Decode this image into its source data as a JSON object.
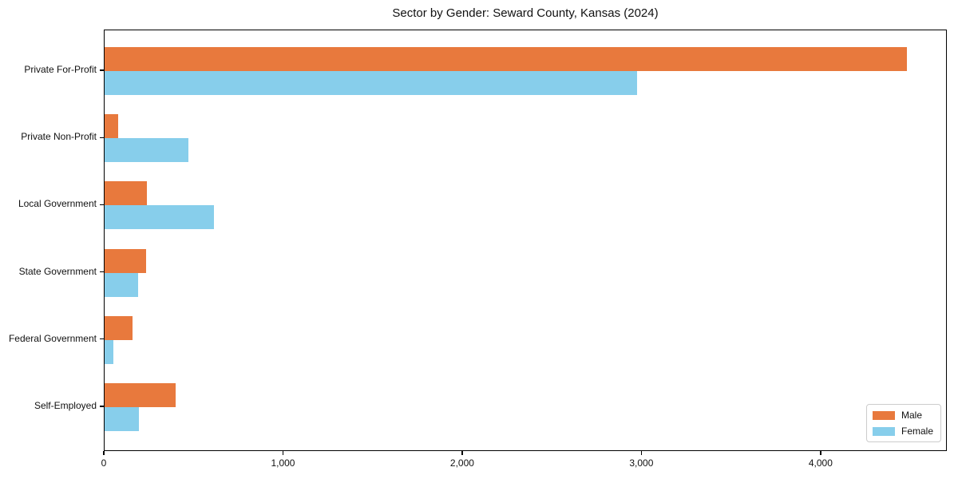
{
  "title": "Sector by Gender: Seward County, Kansas (2024)",
  "chart_data": {
    "type": "bar",
    "orientation": "horizontal",
    "title": "Sector by Gender: Seward County, Kansas (2024)",
    "categories": [
      "Private For-Profit",
      "Private Non-Profit",
      "Local Government",
      "State Government",
      "Federal Government",
      "Self-Employed"
    ],
    "series": [
      {
        "name": "Male",
        "color": "#E8793D",
        "values": [
          4476,
          74,
          237,
          232,
          155,
          397
        ]
      },
      {
        "name": "Female",
        "color": "#87CEEB",
        "values": [
          2971,
          467,
          612,
          185,
          47,
          193
        ]
      }
    ],
    "xlabel": "",
    "ylabel": "",
    "xlim": [
      0,
      4700
    ],
    "xticks": [
      0,
      1000,
      2000,
      3000,
      4000
    ],
    "xtick_labels": [
      "0",
      "1,000",
      "2,000",
      "3,000",
      "4,000"
    ],
    "grid": false,
    "legend": {
      "position": "lower right",
      "entries": [
        "Male",
        "Female"
      ]
    }
  },
  "colors": {
    "male": "#E8793D",
    "female": "#87CEEB",
    "spine": "#000000",
    "background": "#ffffff",
    "legend_border": "#cccccc",
    "text": "#111111"
  }
}
